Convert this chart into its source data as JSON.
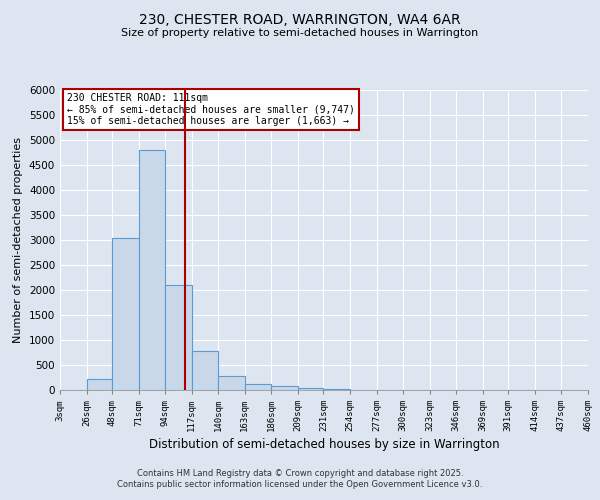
{
  "title1": "230, CHESTER ROAD, WARRINGTON, WA4 6AR",
  "title2": "Size of property relative to semi-detached houses in Warrington",
  "xlabel": "Distribution of semi-detached houses by size in Warrington",
  "ylabel": "Number of semi-detached properties",
  "bin_edges": [
    3,
    26,
    48,
    71,
    94,
    117,
    140,
    163,
    186,
    209,
    231,
    254,
    277,
    300,
    323,
    346,
    369,
    391,
    414,
    437,
    460
  ],
  "bar_heights": [
    0,
    230,
    3050,
    4800,
    2100,
    790,
    290,
    130,
    80,
    50,
    30,
    0,
    0,
    0,
    0,
    0,
    0,
    0,
    0,
    0
  ],
  "bar_color": "#c8d8e8",
  "bar_edge_color": "#5b9bd5",
  "property_line_x": 111,
  "property_line_color": "#aa0000",
  "annotation_text": "230 CHESTER ROAD: 111sqm\n← 85% of semi-detached houses are smaller (9,747)\n15% of semi-detached houses are larger (1,663) →",
  "annotation_box_color": "#aa0000",
  "ylim": [
    0,
    6000
  ],
  "yticks": [
    0,
    500,
    1000,
    1500,
    2000,
    2500,
    3000,
    3500,
    4000,
    4500,
    5000,
    5500,
    6000
  ],
  "background_color": "#dde5f0",
  "grid_color": "#ffffff",
  "footer1": "Contains HM Land Registry data © Crown copyright and database right 2025.",
  "footer2": "Contains public sector information licensed under the Open Government Licence v3.0."
}
